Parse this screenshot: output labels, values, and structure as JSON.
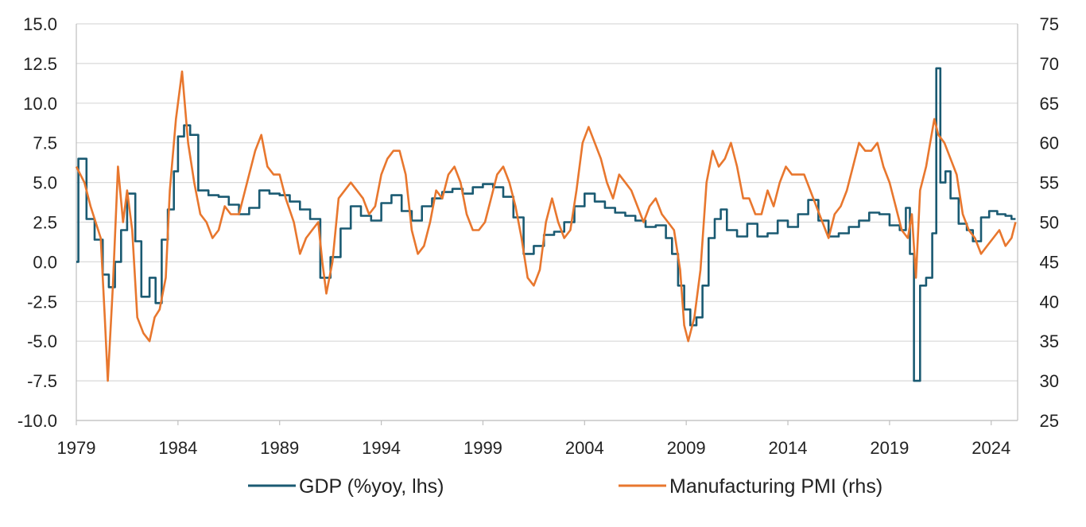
{
  "chart_data": {
    "type": "line",
    "title": "",
    "xlabel": "",
    "ylabel_left": "",
    "ylabel_right": "",
    "x_range": [
      1979.0,
      2025.3
    ],
    "x_ticks": [
      "1979",
      "1984",
      "1989",
      "1994",
      "1999",
      "2004",
      "2009",
      "2014",
      "2019",
      "2024"
    ],
    "y_left": {
      "range": [
        -10.0,
        15.0
      ],
      "ticks": [
        "-10.0",
        "-7.5",
        "-5.0",
        "-2.5",
        "0.0",
        "2.5",
        "5.0",
        "7.5",
        "10.0",
        "12.5",
        "15.0"
      ]
    },
    "y_right": {
      "range": [
        25,
        75
      ],
      "ticks": [
        "25",
        "30",
        "35",
        "40",
        "45",
        "50",
        "55",
        "60",
        "65",
        "70",
        "75"
      ]
    },
    "grid": "horizontal",
    "legend_position": "bottom",
    "series": [
      {
        "name": "GDP (%yoy, lhs)",
        "axis": "left",
        "color": "#1a5a72",
        "step": true,
        "x": [
          1979.0,
          1979.1,
          1979.5,
          1979.9,
          1980.3,
          1980.6,
          1980.9,
          1981.2,
          1981.5,
          1981.9,
          1982.2,
          1982.6,
          1982.9,
          1983.2,
          1983.5,
          1983.8,
          1984.0,
          1984.3,
          1984.6,
          1985.0,
          1985.5,
          1986.0,
          1986.5,
          1987.0,
          1987.5,
          1988.0,
          1988.5,
          1989.0,
          1989.5,
          1990.0,
          1990.5,
          1991.0,
          1991.5,
          1992.0,
          1992.5,
          1993.0,
          1993.5,
          1994.0,
          1994.5,
          1995.0,
          1995.5,
          1996.0,
          1996.5,
          1997.0,
          1997.5,
          1998.0,
          1998.5,
          1999.0,
          1999.5,
          2000.0,
          2000.5,
          2001.0,
          2001.5,
          2002.0,
          2002.5,
          2003.0,
          2003.5,
          2004.0,
          2004.5,
          2005.0,
          2005.5,
          2006.0,
          2006.5,
          2007.0,
          2007.5,
          2008.0,
          2008.3,
          2008.6,
          2008.9,
          2009.2,
          2009.5,
          2009.8,
          2010.1,
          2010.4,
          2010.7,
          2011.0,
          2011.5,
          2012.0,
          2012.5,
          2013.0,
          2013.5,
          2014.0,
          2014.5,
          2015.0,
          2015.5,
          2016.0,
          2016.5,
          2017.0,
          2017.5,
          2018.0,
          2018.5,
          2019.0,
          2019.5,
          2019.8,
          2020.0,
          2020.2,
          2020.5,
          2020.8,
          2021.1,
          2021.3,
          2021.5,
          2021.75,
          2022.0,
          2022.4,
          2022.8,
          2023.1,
          2023.5,
          2023.9,
          2024.3,
          2024.7,
          2025.0,
          2025.2
        ],
        "values": [
          0.0,
          6.5,
          2.7,
          1.4,
          -0.8,
          -1.6,
          0.0,
          2.0,
          4.3,
          1.3,
          -2.2,
          -1.0,
          -2.6,
          1.4,
          3.3,
          5.7,
          7.9,
          8.6,
          8.0,
          4.5,
          4.2,
          4.1,
          3.6,
          3.0,
          3.4,
          4.5,
          4.3,
          4.2,
          3.8,
          3.3,
          2.7,
          -1.0,
          0.3,
          2.1,
          3.5,
          2.9,
          2.6,
          3.7,
          4.2,
          3.2,
          2.6,
          3.5,
          4.0,
          4.4,
          4.6,
          4.3,
          4.7,
          4.9,
          4.7,
          4.1,
          2.8,
          0.5,
          1.0,
          1.7,
          1.9,
          2.5,
          3.5,
          4.3,
          3.8,
          3.4,
          3.1,
          2.9,
          2.6,
          2.2,
          2.3,
          1.5,
          0.5,
          -1.5,
          -3.0,
          -4.0,
          -3.5,
          -1.5,
          1.5,
          2.7,
          3.3,
          2.0,
          1.6,
          2.4,
          1.6,
          1.8,
          2.6,
          2.2,
          3.0,
          3.9,
          2.6,
          1.6,
          1.8,
          2.2,
          2.6,
          3.1,
          3.0,
          2.3,
          2.0,
          3.4,
          0.5,
          -7.5,
          -1.5,
          -1.0,
          1.8,
          12.2,
          5.0,
          5.7,
          4.0,
          2.4,
          2.0,
          1.3,
          2.8,
          3.2,
          3.0,
          2.9,
          2.7,
          2.7
        ]
      },
      {
        "name": "Manufacturing PMI (rhs)",
        "axis": "right",
        "color": "#e8772e",
        "step": false,
        "x": [
          1979.0,
          1979.4,
          1979.7,
          1979.95,
          1980.2,
          1980.4,
          1980.55,
          1980.8,
          1981.05,
          1981.3,
          1981.5,
          1981.75,
          1982.0,
          1982.3,
          1982.6,
          1982.85,
          1983.1,
          1983.4,
          1983.6,
          1983.9,
          1984.2,
          1984.5,
          1984.8,
          1985.1,
          1985.4,
          1985.7,
          1986.0,
          1986.3,
          1986.6,
          1987.0,
          1987.4,
          1987.8,
          1988.1,
          1988.4,
          1988.7,
          1989.0,
          1989.3,
          1989.7,
          1990.0,
          1990.3,
          1990.6,
          1990.9,
          1991.1,
          1991.3,
          1991.6,
          1991.9,
          1992.2,
          1992.5,
          1992.8,
          1993.1,
          1993.4,
          1993.7,
          1994.0,
          1994.3,
          1994.6,
          1994.9,
          1995.2,
          1995.5,
          1995.8,
          1996.1,
          1996.4,
          1996.7,
          1997.0,
          1997.3,
          1997.6,
          1997.9,
          1998.2,
          1998.5,
          1998.8,
          1999.1,
          1999.4,
          1999.7,
          2000.0,
          2000.3,
          2000.6,
          2000.9,
          2001.2,
          2001.5,
          2001.8,
          2002.1,
          2002.4,
          2002.7,
          2003.0,
          2003.3,
          2003.6,
          2003.9,
          2004.2,
          2004.5,
          2004.8,
          2005.1,
          2005.4,
          2005.7,
          2006.0,
          2006.3,
          2006.6,
          2006.9,
          2007.2,
          2007.5,
          2007.8,
          2008.1,
          2008.4,
          2008.7,
          2008.9,
          2009.1,
          2009.4,
          2009.7,
          2010.0,
          2010.3,
          2010.6,
          2010.9,
          2011.2,
          2011.5,
          2011.8,
          2012.1,
          2012.4,
          2012.7,
          2013.0,
          2013.3,
          2013.6,
          2013.9,
          2014.2,
          2014.5,
          2014.8,
          2015.1,
          2015.4,
          2015.7,
          2016.0,
          2016.3,
          2016.6,
          2016.9,
          2017.2,
          2017.5,
          2017.8,
          2018.1,
          2018.4,
          2018.7,
          2019.0,
          2019.3,
          2019.6,
          2019.9,
          2020.1,
          2020.3,
          2020.5,
          2020.8,
          2021.0,
          2021.2,
          2021.4,
          2021.7,
          2022.0,
          2022.3,
          2022.6,
          2022.9,
          2023.2,
          2023.5,
          2023.8,
          2024.1,
          2024.4,
          2024.7,
          2025.0,
          2025.2
        ],
        "values": [
          57.0,
          55.0,
          52.0,
          50.0,
          48.0,
          38.0,
          30.0,
          42.0,
          57.0,
          50.0,
          54.0,
          49.0,
          38.0,
          36.0,
          35.0,
          38.0,
          39.0,
          43.0,
          54.0,
          63.0,
          69.0,
          60.0,
          55.0,
          51.0,
          50.0,
          48.0,
          49.0,
          52.0,
          51.0,
          51.0,
          55.0,
          59.0,
          61.0,
          57.0,
          56.0,
          56.0,
          53.0,
          50.0,
          46.0,
          48.0,
          49.0,
          50.0,
          45.0,
          41.0,
          45.0,
          53.0,
          54.0,
          55.0,
          54.0,
          53.0,
          51.0,
          52.0,
          56.0,
          58.0,
          59.0,
          59.0,
          56.0,
          49.0,
          46.0,
          47.0,
          50.0,
          54.0,
          53.0,
          56.0,
          57.0,
          55.0,
          51.0,
          49.0,
          49.0,
          50.0,
          53.0,
          56.0,
          57.0,
          55.0,
          52.0,
          48.0,
          43.0,
          42.0,
          44.0,
          50.0,
          53.0,
          50.0,
          48.0,
          49.0,
          54.0,
          60.0,
          62.0,
          60.0,
          58.0,
          55.0,
          53.0,
          56.0,
          55.0,
          54.0,
          52.0,
          50.0,
          52.0,
          53.0,
          51.0,
          50.0,
          49.0,
          44.0,
          37.0,
          35.0,
          38.0,
          44.0,
          55.0,
          59.0,
          57.0,
          58.0,
          60.0,
          57.0,
          53.0,
          53.0,
          51.0,
          51.0,
          54.0,
          52.0,
          55.0,
          57.0,
          56.0,
          56.0,
          56.0,
          54.0,
          52.0,
          50.0,
          48.0,
          51.0,
          52.0,
          54.0,
          57.0,
          60.0,
          59.0,
          59.0,
          60.0,
          57.0,
          55.0,
          52.0,
          49.0,
          48.0,
          51.0,
          43.0,
          54.0,
          57.0,
          60.0,
          63.0,
          61.0,
          60.0,
          58.0,
          56.0,
          51.0,
          49.0,
          48.0,
          46.0,
          47.0,
          48.0,
          49.0,
          47.0,
          48.0,
          50.0
        ]
      }
    ]
  }
}
